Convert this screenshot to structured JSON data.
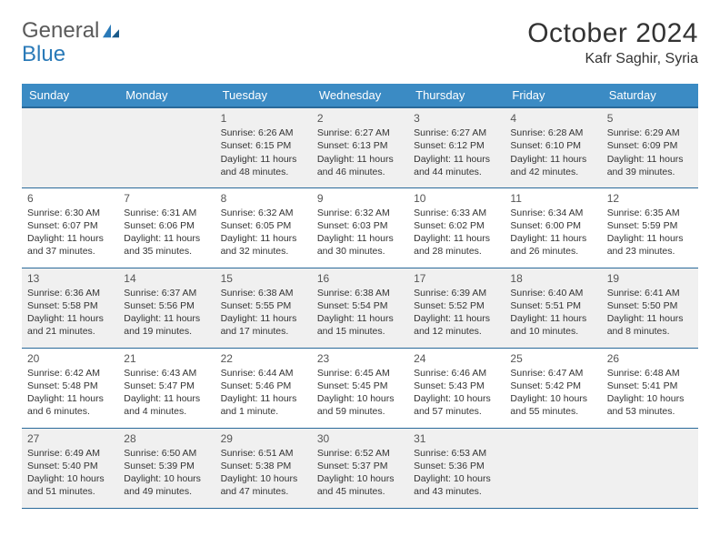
{
  "logo": {
    "text1": "General",
    "text2": "Blue"
  },
  "title": "October 2024",
  "location": "Kafr Saghir, Syria",
  "colors": {
    "header_bg": "#3b8bc4",
    "header_border": "#2a6a9a",
    "shaded_bg": "#f0f0f0",
    "logo_gray": "#5a5a5a",
    "logo_blue": "#2a7ab8"
  },
  "day_headers": [
    "Sunday",
    "Monday",
    "Tuesday",
    "Wednesday",
    "Thursday",
    "Friday",
    "Saturday"
  ],
  "weeks": [
    [
      null,
      null,
      {
        "n": "1",
        "sr": "6:26 AM",
        "ss": "6:15 PM",
        "dl": "11 hours and 48 minutes."
      },
      {
        "n": "2",
        "sr": "6:27 AM",
        "ss": "6:13 PM",
        "dl": "11 hours and 46 minutes."
      },
      {
        "n": "3",
        "sr": "6:27 AM",
        "ss": "6:12 PM",
        "dl": "11 hours and 44 minutes."
      },
      {
        "n": "4",
        "sr": "6:28 AM",
        "ss": "6:10 PM",
        "dl": "11 hours and 42 minutes."
      },
      {
        "n": "5",
        "sr": "6:29 AM",
        "ss": "6:09 PM",
        "dl": "11 hours and 39 minutes."
      }
    ],
    [
      {
        "n": "6",
        "sr": "6:30 AM",
        "ss": "6:07 PM",
        "dl": "11 hours and 37 minutes."
      },
      {
        "n": "7",
        "sr": "6:31 AM",
        "ss": "6:06 PM",
        "dl": "11 hours and 35 minutes."
      },
      {
        "n": "8",
        "sr": "6:32 AM",
        "ss": "6:05 PM",
        "dl": "11 hours and 32 minutes."
      },
      {
        "n": "9",
        "sr": "6:32 AM",
        "ss": "6:03 PM",
        "dl": "11 hours and 30 minutes."
      },
      {
        "n": "10",
        "sr": "6:33 AM",
        "ss": "6:02 PM",
        "dl": "11 hours and 28 minutes."
      },
      {
        "n": "11",
        "sr": "6:34 AM",
        "ss": "6:00 PM",
        "dl": "11 hours and 26 minutes."
      },
      {
        "n": "12",
        "sr": "6:35 AM",
        "ss": "5:59 PM",
        "dl": "11 hours and 23 minutes."
      }
    ],
    [
      {
        "n": "13",
        "sr": "6:36 AM",
        "ss": "5:58 PM",
        "dl": "11 hours and 21 minutes."
      },
      {
        "n": "14",
        "sr": "6:37 AM",
        "ss": "5:56 PM",
        "dl": "11 hours and 19 minutes."
      },
      {
        "n": "15",
        "sr": "6:38 AM",
        "ss": "5:55 PM",
        "dl": "11 hours and 17 minutes."
      },
      {
        "n": "16",
        "sr": "6:38 AM",
        "ss": "5:54 PM",
        "dl": "11 hours and 15 minutes."
      },
      {
        "n": "17",
        "sr": "6:39 AM",
        "ss": "5:52 PM",
        "dl": "11 hours and 12 minutes."
      },
      {
        "n": "18",
        "sr": "6:40 AM",
        "ss": "5:51 PM",
        "dl": "11 hours and 10 minutes."
      },
      {
        "n": "19",
        "sr": "6:41 AM",
        "ss": "5:50 PM",
        "dl": "11 hours and 8 minutes."
      }
    ],
    [
      {
        "n": "20",
        "sr": "6:42 AM",
        "ss": "5:48 PM",
        "dl": "11 hours and 6 minutes."
      },
      {
        "n": "21",
        "sr": "6:43 AM",
        "ss": "5:47 PM",
        "dl": "11 hours and 4 minutes."
      },
      {
        "n": "22",
        "sr": "6:44 AM",
        "ss": "5:46 PM",
        "dl": "11 hours and 1 minute."
      },
      {
        "n": "23",
        "sr": "6:45 AM",
        "ss": "5:45 PM",
        "dl": "10 hours and 59 minutes."
      },
      {
        "n": "24",
        "sr": "6:46 AM",
        "ss": "5:43 PM",
        "dl": "10 hours and 57 minutes."
      },
      {
        "n": "25",
        "sr": "6:47 AM",
        "ss": "5:42 PM",
        "dl": "10 hours and 55 minutes."
      },
      {
        "n": "26",
        "sr": "6:48 AM",
        "ss": "5:41 PM",
        "dl": "10 hours and 53 minutes."
      }
    ],
    [
      {
        "n": "27",
        "sr": "6:49 AM",
        "ss": "5:40 PM",
        "dl": "10 hours and 51 minutes."
      },
      {
        "n": "28",
        "sr": "6:50 AM",
        "ss": "5:39 PM",
        "dl": "10 hours and 49 minutes."
      },
      {
        "n": "29",
        "sr": "6:51 AM",
        "ss": "5:38 PM",
        "dl": "10 hours and 47 minutes."
      },
      {
        "n": "30",
        "sr": "6:52 AM",
        "ss": "5:37 PM",
        "dl": "10 hours and 45 minutes."
      },
      {
        "n": "31",
        "sr": "6:53 AM",
        "ss": "5:36 PM",
        "dl": "10 hours and 43 minutes."
      },
      null,
      null
    ]
  ],
  "shaded_rows": [
    0,
    2,
    4
  ],
  "labels": {
    "sunrise": "Sunrise: ",
    "sunset": "Sunset: ",
    "daylight": "Daylight: "
  }
}
